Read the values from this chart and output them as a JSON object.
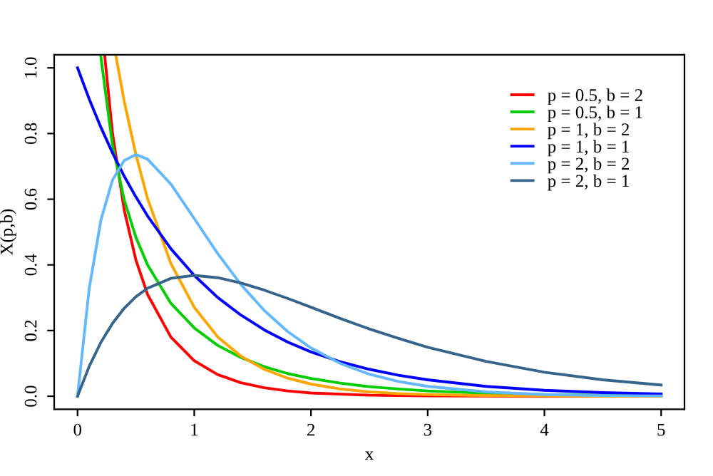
{
  "chart_data": {
    "type": "line",
    "xlabel": "x",
    "ylabel": "X(p,b)",
    "xlim": [
      -0.2,
      5.2
    ],
    "ylim": [
      -0.04,
      1.04
    ],
    "xticks": [
      0,
      1,
      2,
      3,
      4,
      5
    ],
    "yticks": [
      {
        "value": 0,
        "label": "0.0"
      },
      0.2,
      0.4,
      0.6,
      0.8,
      {
        "value": 1,
        "label": "1.0"
      }
    ],
    "grid": false,
    "legend": "top right",
    "line_style": "solid",
    "marker": "none",
    "series": [
      {
        "name": "p = 0.5, b = 2",
        "color": "#ff0000",
        "x": [
          0.232,
          0.3,
          0.4,
          0.5,
          0.6,
          0.8,
          1,
          1.2,
          1.4,
          1.6,
          1.8,
          2,
          2.5,
          3,
          4,
          5
        ],
        "values": [
          1.04,
          0.8,
          0.567,
          0.415,
          0.31,
          0.18,
          0.108,
          0.066,
          0.041,
          0.026,
          0.016,
          0.01,
          0.003,
          0.001,
          0,
          0
        ]
      },
      {
        "name": "p = 0.5, b = 1",
        "color": "#00cd00",
        "x": [
          0.2,
          0.3,
          0.4,
          0.5,
          0.6,
          0.8,
          1,
          1.2,
          1.4,
          1.6,
          1.8,
          2,
          2.25,
          2.5,
          2.75,
          3,
          3.5,
          4,
          4.5,
          5
        ],
        "values": [
          1.033,
          0.763,
          0.598,
          0.484,
          0.4,
          0.283,
          0.208,
          0.155,
          0.118,
          0.09,
          0.069,
          0.054,
          0.04,
          0.029,
          0.022,
          0.016,
          0.009,
          0.005,
          0.003,
          0.002
        ]
      },
      {
        "name": "p = 1, b = 2",
        "color": "#ffa500",
        "x": [
          0.327,
          0.4,
          0.5,
          0.6,
          0.8,
          1,
          1.2,
          1.4,
          1.6,
          1.8,
          2,
          2.25,
          2.5,
          2.75,
          3,
          3.5,
          4,
          4.5,
          5
        ],
        "values": [
          1.04,
          0.898,
          0.736,
          0.602,
          0.404,
          0.271,
          0.181,
          0.122,
          0.082,
          0.055,
          0.037,
          0.022,
          0.013,
          0.008,
          0.005,
          0.002,
          0.001,
          0,
          0
        ]
      },
      {
        "name": "p = 1, b = 1",
        "color": "#0000ff",
        "x": [
          0,
          0.1,
          0.2,
          0.3,
          0.4,
          0.5,
          0.6,
          0.8,
          1,
          1.2,
          1.4,
          1.6,
          1.8,
          2,
          2.25,
          2.5,
          2.75,
          3,
          3.5,
          4,
          4.5,
          5
        ],
        "values": [
          1,
          0.905,
          0.819,
          0.741,
          0.67,
          0.607,
          0.549,
          0.449,
          0.368,
          0.301,
          0.247,
          0.202,
          0.165,
          0.135,
          0.105,
          0.082,
          0.064,
          0.05,
          0.03,
          0.018,
          0.011,
          0.007
        ]
      },
      {
        "name": "p = 2, b = 2",
        "color": "#63b8ff",
        "x": [
          0,
          0.1,
          0.2,
          0.3,
          0.4,
          0.5,
          0.6,
          0.8,
          1,
          1.2,
          1.4,
          1.6,
          1.8,
          2,
          2.25,
          2.5,
          2.75,
          3,
          3.5,
          4,
          4.5,
          5
        ],
        "values": [
          0,
          0.328,
          0.536,
          0.659,
          0.718,
          0.736,
          0.722,
          0.646,
          0.541,
          0.435,
          0.34,
          0.261,
          0.197,
          0.147,
          0.1,
          0.067,
          0.045,
          0.03,
          0.013,
          0.005,
          0.002,
          0.001
        ]
      },
      {
        "name": "p = 2, b = 1",
        "color": "#36648b",
        "x": [
          0,
          0.1,
          0.2,
          0.3,
          0.4,
          0.5,
          0.6,
          0.8,
          1,
          1.2,
          1.4,
          1.6,
          1.8,
          2,
          2.25,
          2.5,
          2.75,
          3,
          3.5,
          4,
          4.5,
          5
        ],
        "values": [
          0,
          0.091,
          0.164,
          0.222,
          0.268,
          0.303,
          0.329,
          0.359,
          0.368,
          0.361,
          0.345,
          0.323,
          0.298,
          0.271,
          0.237,
          0.205,
          0.176,
          0.149,
          0.106,
          0.073,
          0.05,
          0.034
        ]
      }
    ]
  }
}
